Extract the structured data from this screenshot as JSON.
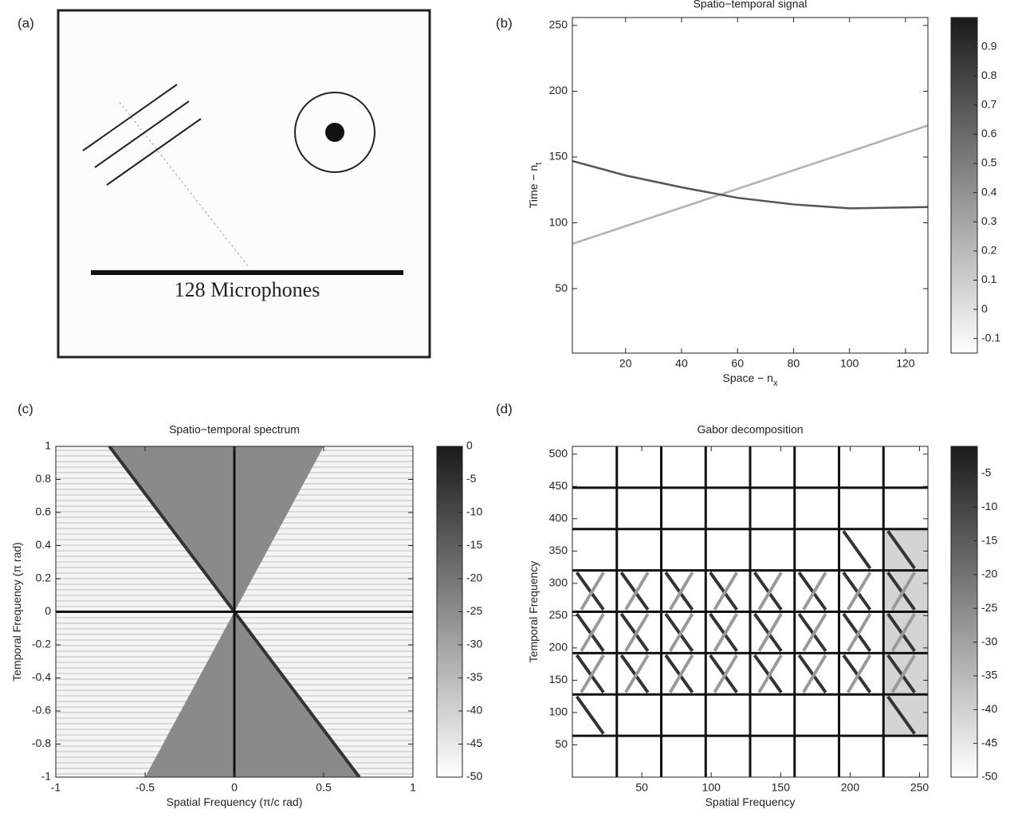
{
  "diagram": {
    "label": "(a)",
    "caption": "128 Microphones"
  },
  "chart_data": [
    {
      "type": "line",
      "label": "(b)",
      "title": "Spatio−temporal signal",
      "xlabel": "Space − n",
      "xlabel_sub": "x",
      "ylabel": "Time − n",
      "ylabel_sub": "t",
      "x": [
        1,
        20,
        40,
        60,
        80,
        100,
        128
      ],
      "series": [
        {
          "color": "#b0b0b0",
          "values": [
            84,
            97.5,
            111.6,
            125.8,
            140,
            154,
            174
          ]
        },
        {
          "color": "#555555",
          "values": [
            147,
            136,
            127,
            119,
            114,
            111,
            112
          ]
        }
      ],
      "xlim": [
        1,
        128
      ],
      "xticks": [
        20,
        40,
        60,
        80,
        100,
        120
      ],
      "ylim": [
        1,
        256
      ],
      "yticks": [
        50,
        100,
        150,
        200,
        250
      ],
      "clim": [
        -0.15,
        1.0
      ],
      "cticks": [
        -0.1,
        0,
        0.1,
        0.2,
        0.3,
        0.4,
        0.5,
        0.6,
        0.7,
        0.8,
        0.9
      ]
    },
    {
      "type": "heatmap",
      "label": "(c)",
      "title": "Spatio−temporal spectrum",
      "xlabel": "Spatial Frequency (π/c rad)",
      "ylabel": "Temporal Frequency (π rad)",
      "xlim": [
        -1,
        1
      ],
      "xticks": [
        -1,
        -0.5,
        0,
        0.5,
        1
      ],
      "ylim": [
        -1,
        1
      ],
      "yticks": [
        -1,
        -0.8,
        -0.6,
        -0.4,
        -0.2,
        0,
        0.2,
        0.4,
        0.6,
        0.8,
        1
      ],
      "clim": [
        -50,
        0
      ],
      "cticks": [
        0,
        -5,
        -10,
        -15,
        -20,
        -25,
        -30,
        -35,
        -40,
        -45,
        -50
      ]
    },
    {
      "type": "heatmap",
      "label": "(d)",
      "title": "Gabor decomposition",
      "xlabel": "Spatial Frequency",
      "ylabel": "Temporal Frequency",
      "xlim": [
        0,
        256
      ],
      "xticks": [
        50,
        100,
        150,
        200,
        250
      ],
      "ylim": [
        0,
        512
      ],
      "yticks": [
        50,
        100,
        150,
        200,
        250,
        300,
        350,
        400,
        450,
        500
      ],
      "clim": [
        -50,
        -1
      ],
      "cticks": [
        -5,
        -10,
        -15,
        -20,
        -25,
        -30,
        -35,
        -40,
        -45,
        -50
      ]
    }
  ]
}
